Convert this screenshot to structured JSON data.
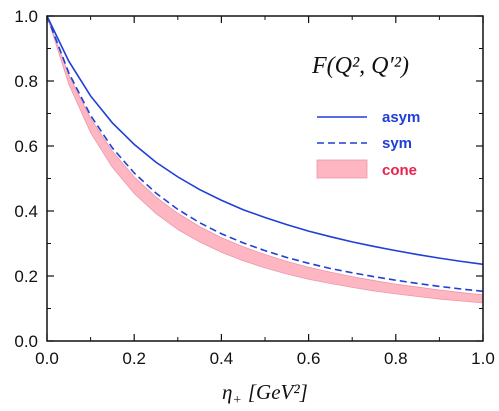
{
  "colors": {
    "line": "#1f3fd6",
    "band_fill": "#ffb6c3",
    "band_edge": "#e89aa8",
    "cone_text": "#e8224f",
    "axis": "#111111"
  },
  "chart_data": {
    "type": "line",
    "xlabel_main": "η",
    "xlabel_sub": "+",
    "xlabel_unit": "[GeV²]",
    "annotation": "F(Q², Q′²)",
    "xlim": [
      0,
      1
    ],
    "ylim": [
      0,
      1
    ],
    "x_ticks": [
      "0.0",
      "0.2",
      "0.4",
      "0.6",
      "0.8",
      "1.0"
    ],
    "y_ticks": [
      "0.0",
      "0.2",
      "0.4",
      "0.6",
      "0.8",
      "1.0"
    ],
    "legend_position": "top-right",
    "x": [
      0,
      0.05,
      0.1,
      0.15,
      0.2,
      0.25,
      0.3,
      0.35,
      0.4,
      0.45,
      0.5,
      0.55,
      0.6,
      0.65,
      0.7,
      0.75,
      0.8,
      0.85,
      0.9,
      0.95,
      1.0
    ],
    "series": [
      {
        "name": "asym",
        "style": "solid",
        "values": [
          1.0,
          0.861,
          0.754,
          0.671,
          0.605,
          0.55,
          0.505,
          0.466,
          0.433,
          0.404,
          0.38,
          0.358,
          0.338,
          0.321,
          0.305,
          0.291,
          0.278,
          0.266,
          0.255,
          0.245,
          0.236
        ]
      },
      {
        "name": "sym",
        "style": "dashed",
        "values": [
          1.0,
          0.825,
          0.694,
          0.594,
          0.517,
          0.455,
          0.405,
          0.364,
          0.33,
          0.302,
          0.278,
          0.257,
          0.239,
          0.223,
          0.21,
          0.198,
          0.187,
          0.177,
          0.168,
          0.16,
          0.153
        ]
      },
      {
        "name": "cone",
        "style": "band",
        "upper": [
          1.0,
          0.819,
          0.685,
          0.584,
          0.505,
          0.443,
          0.393,
          0.352,
          0.318,
          0.29,
          0.266,
          0.245,
          0.227,
          0.212,
          0.198,
          0.186,
          0.175,
          0.166,
          0.157,
          0.149,
          0.142
        ],
        "lower": [
          1.0,
          0.79,
          0.641,
          0.534,
          0.454,
          0.392,
          0.343,
          0.305,
          0.273,
          0.247,
          0.225,
          0.206,
          0.19,
          0.177,
          0.165,
          0.154,
          0.145,
          0.137,
          0.129,
          0.123,
          0.117
        ]
      }
    ]
  }
}
